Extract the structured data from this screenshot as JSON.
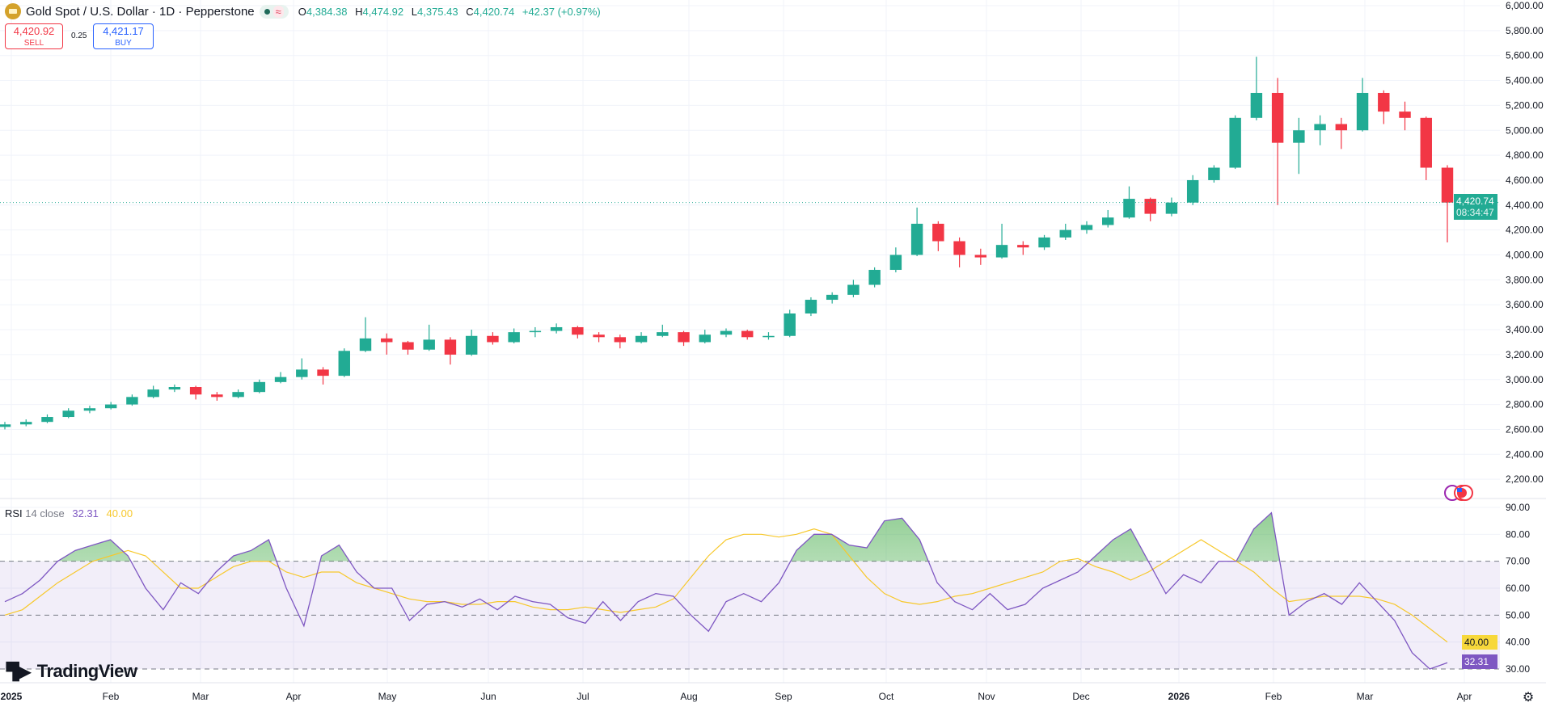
{
  "header": {
    "symbol_title": "Gold Spot / U.S. Dollar · 1D · Pepperstone",
    "status_icon": "market-open-dot",
    "delay_icon": "approx-wave",
    "ohlc": {
      "o_label": "O",
      "o": "4,384.38",
      "h_label": "H",
      "h": "4,474.92",
      "l_label": "L",
      "l": "4,375.43",
      "c_label": "C",
      "c": "4,420.74",
      "change": "+42.37 (+0.97%)"
    }
  },
  "trade": {
    "sell_price": "4,420.92",
    "sell_label": "SELL",
    "spread": "0.25",
    "buy_price": "4,421.17",
    "buy_label": "BUY"
  },
  "rsi_legend": {
    "name": "RSI",
    "params": "14 close",
    "value": "32.31",
    "ma_value": "40.00"
  },
  "current_price": {
    "price": "4,420.74",
    "countdown": "08:34:47"
  },
  "branding": {
    "logo_text": "TradingView"
  },
  "colors": {
    "up": "#22ab94",
    "down": "#f23645",
    "rsi": "#7e57c2",
    "rsi_ma": "#f7c82b",
    "band": "#7e57c2",
    "overbought_fill": "#4caf50"
  },
  "chart_data": [
    {
      "type": "candlestick",
      "title": "Gold Spot / U.S. Dollar · 1D · Pepperstone",
      "x_tick_labels": [
        "2025",
        "Feb",
        "Mar",
        "Apr",
        "May",
        "Jun",
        "Jul",
        "Aug",
        "Sep",
        "Oct",
        "Nov",
        "Dec",
        "2026",
        "Feb",
        "Mar",
        "Apr"
      ],
      "y_tick_labels": [
        "6,000.00",
        "5,800.00",
        "5,600.00",
        "5,400.00",
        "5,200.00",
        "5,000.00",
        "4,800.00",
        "4,600.00",
        "4,400.00",
        "4,200.00",
        "4,000.00",
        "3,800.00",
        "3,600.00",
        "3,400.00",
        "3,200.00",
        "3,000.00",
        "2,800.00",
        "2,600.00",
        "2,400.00",
        "2,200.00"
      ],
      "ylim": [
        2100,
        6020
      ],
      "grid": true,
      "last_price": 4420.74,
      "ohlc": [
        [
          2620,
          2660,
          2600,
          2640
        ],
        [
          2640,
          2680,
          2625,
          2660
        ],
        [
          2660,
          2720,
          2650,
          2700
        ],
        [
          2700,
          2770,
          2690,
          2750
        ],
        [
          2750,
          2790,
          2730,
          2770
        ],
        [
          2770,
          2820,
          2760,
          2800
        ],
        [
          2800,
          2880,
          2790,
          2860
        ],
        [
          2860,
          2950,
          2850,
          2920
        ],
        [
          2920,
          2960,
          2900,
          2940
        ],
        [
          2940,
          2950,
          2840,
          2880
        ],
        [
          2880,
          2900,
          2830,
          2860
        ],
        [
          2860,
          2920,
          2850,
          2900
        ],
        [
          2900,
          3000,
          2890,
          2980
        ],
        [
          2980,
          3060,
          2970,
          3020
        ],
        [
          3020,
          3170,
          3000,
          3080
        ],
        [
          3080,
          3100,
          2960,
          3030
        ],
        [
          3030,
          3250,
          3020,
          3230
        ],
        [
          3230,
          3500,
          3220,
          3330
        ],
        [
          3330,
          3370,
          3200,
          3300
        ],
        [
          3300,
          3310,
          3200,
          3240
        ],
        [
          3240,
          3440,
          3230,
          3320
        ],
        [
          3320,
          3340,
          3120,
          3200
        ],
        [
          3200,
          3400,
          3190,
          3350
        ],
        [
          3350,
          3380,
          3280,
          3300
        ],
        [
          3300,
          3410,
          3290,
          3380
        ],
        [
          3380,
          3420,
          3340,
          3390
        ],
        [
          3390,
          3450,
          3370,
          3420
        ],
        [
          3420,
          3430,
          3330,
          3360
        ],
        [
          3360,
          3380,
          3300,
          3340
        ],
        [
          3340,
          3360,
          3250,
          3300
        ],
        [
          3300,
          3380,
          3290,
          3350
        ],
        [
          3350,
          3440,
          3340,
          3380
        ],
        [
          3380,
          3390,
          3270,
          3300
        ],
        [
          3300,
          3400,
          3290,
          3360
        ],
        [
          3360,
          3410,
          3340,
          3390
        ],
        [
          3390,
          3400,
          3320,
          3340
        ],
        [
          3340,
          3380,
          3320,
          3350
        ],
        [
          3350,
          3560,
          3340,
          3530
        ],
        [
          3530,
          3660,
          3510,
          3640
        ],
        [
          3640,
          3700,
          3610,
          3680
        ],
        [
          3680,
          3800,
          3660,
          3760
        ],
        [
          3760,
          3900,
          3740,
          3880
        ],
        [
          3880,
          4060,
          3860,
          4000
        ],
        [
          4000,
          4380,
          3990,
          4250
        ],
        [
          4250,
          4270,
          4030,
          4110
        ],
        [
          4110,
          4140,
          3900,
          4000
        ],
        [
          4000,
          4050,
          3920,
          3980
        ],
        [
          3980,
          4250,
          3970,
          4080
        ],
        [
          4080,
          4110,
          4000,
          4060
        ],
        [
          4060,
          4160,
          4040,
          4140
        ],
        [
          4140,
          4250,
          4120,
          4200
        ],
        [
          4200,
          4270,
          4170,
          4240
        ],
        [
          4240,
          4360,
          4220,
          4300
        ],
        [
          4300,
          4550,
          4290,
          4450
        ],
        [
          4450,
          4460,
          4270,
          4330
        ],
        [
          4330,
          4460,
          4310,
          4420
        ],
        [
          4420,
          4640,
          4400,
          4600
        ],
        [
          4600,
          4720,
          4580,
          4700
        ],
        [
          4700,
          5120,
          4690,
          5100
        ],
        [
          5100,
          5590,
          5080,
          5300
        ],
        [
          5300,
          5420,
          4400,
          4900
        ],
        [
          4900,
          5100,
          4650,
          5000
        ],
        [
          5000,
          5120,
          4880,
          5050
        ],
        [
          5050,
          5100,
          4850,
          5000
        ],
        [
          5000,
          5420,
          4990,
          5300
        ],
        [
          5300,
          5320,
          5050,
          5150
        ],
        [
          5150,
          5230,
          5000,
          5100
        ],
        [
          5100,
          5110,
          4600,
          4700
        ],
        [
          4700,
          4720,
          4100,
          4420
        ]
      ]
    },
    {
      "type": "line",
      "series_names": [
        "RSI 14 close",
        "RSI-based MA"
      ],
      "y_tick_labels": [
        "90.00",
        "80.00",
        "70.00",
        "60.00",
        "50.00",
        "40.00",
        "30.00"
      ],
      "ylim": [
        27,
        92
      ],
      "bands": {
        "upper": 70,
        "middle": 50,
        "lower": 30
      },
      "rsi": [
        55,
        58,
        63,
        70,
        74,
        76,
        78,
        72,
        60,
        52,
        62,
        58,
        66,
        72,
        74,
        78,
        60,
        46,
        72,
        76,
        66,
        60,
        60,
        48,
        54,
        55,
        53,
        56,
        52,
        57,
        55,
        54,
        49,
        47,
        55,
        48,
        55,
        58,
        57,
        50,
        44,
        55,
        58,
        55,
        62,
        74,
        80,
        80,
        76,
        75,
        85,
        86,
        78,
        62,
        55,
        52,
        58,
        52,
        54,
        60,
        63,
        66,
        72,
        78,
        82,
        70,
        58,
        65,
        62,
        70,
        70,
        82,
        88,
        50,
        55,
        58,
        54,
        62,
        55,
        48,
        36,
        30,
        32.31
      ],
      "ma": [
        50,
        52,
        57,
        62,
        66,
        70,
        72,
        74,
        72,
        66,
        60,
        60,
        64,
        68,
        70,
        70,
        66,
        64,
        66,
        66,
        62,
        60,
        58,
        56,
        55,
        55,
        54,
        54,
        55,
        55,
        53,
        52,
        52,
        53,
        52,
        51,
        52,
        53,
        56,
        64,
        72,
        78,
        80,
        80,
        79,
        80,
        82,
        80,
        72,
        64,
        58,
        55,
        54,
        55,
        57,
        58,
        60,
        62,
        64,
        66,
        70,
        71,
        68,
        66,
        63,
        66,
        70,
        74,
        78,
        74,
        70,
        66,
        60,
        55,
        56,
        57,
        57,
        57,
        56,
        54,
        50,
        45,
        40
      ]
    }
  ]
}
